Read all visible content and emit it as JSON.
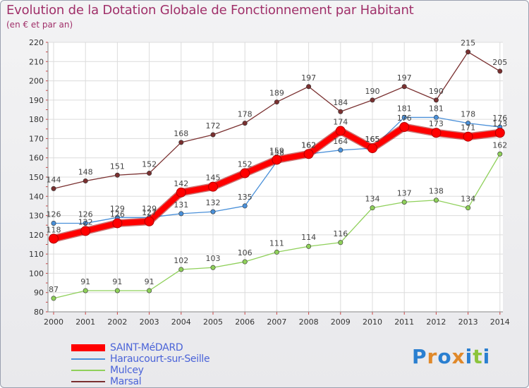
{
  "title": "Evolution de la Dotation Globale de Fonctionnement par Habitant",
  "subtitle": "(en € et par an)",
  "logo": {
    "text": "Proxiti",
    "letters": [
      {
        "ch": "P",
        "color": "#2a7fd0"
      },
      {
        "ch": "r",
        "color": "#e0892a"
      },
      {
        "ch": "o",
        "color": "#2a7fd0"
      },
      {
        "ch": "x",
        "color": "#e0892a"
      },
      {
        "ch": "i",
        "color": "#2a7fd0"
      },
      {
        "ch": "t",
        "color": "#8cc43c"
      },
      {
        "ch": "i",
        "color": "#2a7fd0"
      }
    ]
  },
  "chart_data": {
    "type": "line",
    "title": "Evolution de la Dotation Globale de Fonctionnement par Habitant",
    "ylabel": "(en € et par an)",
    "xlabel": "",
    "x": [
      "2000",
      "2001",
      "2002",
      "2003",
      "2004",
      "2005",
      "2006",
      "2007",
      "2008",
      "2009",
      "2010",
      "2011",
      "2012",
      "2013",
      "2014"
    ],
    "ylim": [
      80,
      220
    ],
    "yticks": [
      80,
      90,
      100,
      110,
      120,
      130,
      140,
      150,
      160,
      170,
      180,
      190,
      200,
      210,
      220
    ],
    "grid": true,
    "legend_position": "bottom-left",
    "series": [
      {
        "name": "SAINT-MéDARD",
        "color": "#ff0000",
        "highlight": true,
        "values": [
          118,
          122,
          126,
          127,
          142,
          145,
          152,
          159,
          162,
          174,
          165,
          176,
          173,
          171,
          173
        ]
      },
      {
        "name": "Haraucourt-sur-Seille",
        "color": "#4a90d9",
        "highlight": false,
        "values": [
          126,
          126,
          129,
          129,
          131,
          132,
          135,
          158,
          162,
          164,
          165,
          181,
          181,
          178,
          176
        ]
      },
      {
        "name": "Mulcey",
        "color": "#8fd05a",
        "highlight": false,
        "values": [
          87,
          91,
          91,
          91,
          102,
          103,
          106,
          111,
          114,
          116,
          134,
          137,
          138,
          134,
          162
        ]
      },
      {
        "name": "Marsal",
        "color": "#7a3030",
        "highlight": false,
        "values": [
          144,
          148,
          151,
          152,
          168,
          172,
          178,
          189,
          197,
          184,
          190,
          197,
          190,
          215,
          205
        ]
      }
    ]
  }
}
